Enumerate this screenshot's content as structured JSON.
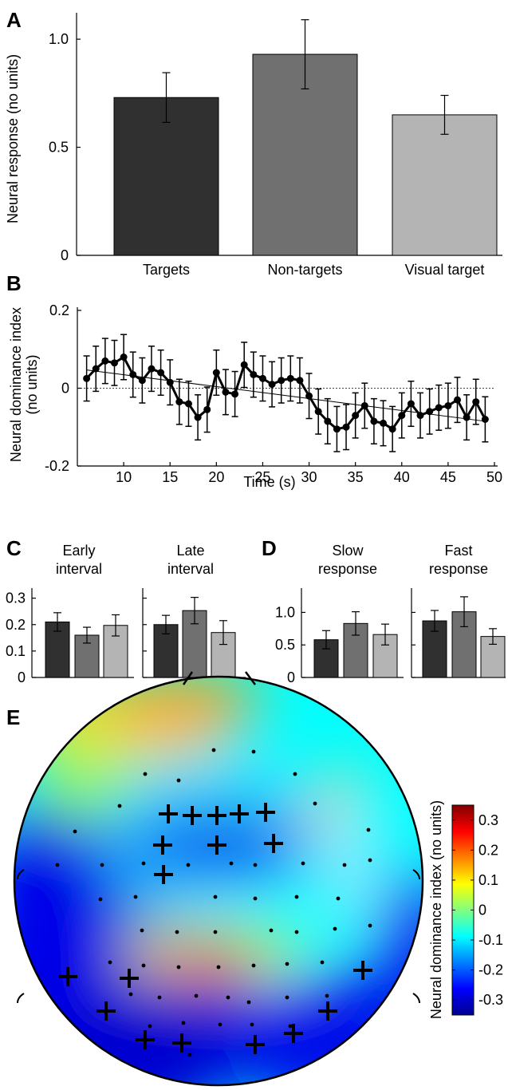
{
  "colors": {
    "bar1": "#303030",
    "bar2": "#707070",
    "bar3": "#b4b4b4",
    "axis": "#000000"
  },
  "chart_data": [
    {
      "panel": "A",
      "type": "bar",
      "categories": [
        "Targets",
        "Non-targets",
        "Visual target"
      ],
      "values": [
        0.73,
        0.93,
        0.65
      ],
      "errors": [
        0.115,
        0.16,
        0.09
      ],
      "ylabel": "Neural response (no units)",
      "ylim": [
        0,
        1.1
      ],
      "yticks": [
        0,
        0.5,
        1.0
      ],
      "ytick_labels": [
        "0",
        "0.5",
        "1.0"
      ]
    },
    {
      "panel": "B",
      "type": "line",
      "xlabel": "Time (s)",
      "ylabel": "Neural dominance index (no units)",
      "ylabel_lines": [
        "Neural dominance index",
        "(no units)"
      ],
      "xlim": [
        5,
        50
      ],
      "ylim": [
        -0.2,
        0.2
      ],
      "xticks": [
        10,
        15,
        20,
        25,
        30,
        35,
        40,
        45,
        50
      ],
      "yticks": [
        -0.2,
        0,
        0.2
      ],
      "ytick_labels": [
        "-0.2",
        "0",
        "0.2"
      ],
      "x": [
        6,
        7,
        8,
        9,
        10,
        11,
        12,
        13,
        14,
        15,
        16,
        17,
        18,
        19,
        20,
        21,
        22,
        23,
        24,
        25,
        26,
        27,
        28,
        29,
        30,
        31,
        32,
        33,
        34,
        35,
        36,
        37,
        38,
        39,
        40,
        41,
        42,
        43,
        44,
        45,
        46,
        47,
        48,
        49
      ],
      "y": [
        0.025,
        0.05,
        0.07,
        0.065,
        0.08,
        0.035,
        0.02,
        0.05,
        0.04,
        0.015,
        -0.035,
        -0.04,
        -0.075,
        -0.055,
        0.04,
        -0.01,
        -0.015,
        0.06,
        0.035,
        0.025,
        0.01,
        0.02,
        0.025,
        0.02,
        -0.02,
        -0.06,
        -0.085,
        -0.105,
        -0.1,
        -0.07,
        -0.045,
        -0.085,
        -0.09,
        -0.105,
        -0.07,
        -0.04,
        -0.07,
        -0.06,
        -0.05,
        -0.045,
        -0.03,
        -0.075,
        -0.035,
        -0.08
      ],
      "error": 0.058,
      "trend": [
        [
          6,
          0.047
        ],
        [
          49,
          -0.085
        ]
      ],
      "reference_line": 0
    },
    {
      "panel": "C",
      "type": "bar",
      "subplots": [
        {
          "title": "Early interval",
          "title_lines": [
            "Early",
            "interval"
          ],
          "values": [
            0.21,
            0.16,
            0.197
          ],
          "errors": [
            0.035,
            0.03,
            0.04
          ]
        },
        {
          "title": "Late interval",
          "title_lines": [
            "Late",
            "interval"
          ],
          "values": [
            0.2,
            0.253,
            0.17
          ],
          "errors": [
            0.035,
            0.05,
            0.045
          ]
        }
      ],
      "ylim": [
        0,
        0.32
      ],
      "yticks": [
        0,
        0.1,
        0.2,
        0.3
      ],
      "ytick_labels": [
        "0",
        "0.1",
        "0.2",
        "0.3"
      ]
    },
    {
      "panel": "D",
      "type": "bar",
      "subplots": [
        {
          "title": "Slow response",
          "title_lines": [
            "Slow",
            "response"
          ],
          "values": [
            0.58,
            0.83,
            0.66
          ],
          "errors": [
            0.14,
            0.18,
            0.16
          ]
        },
        {
          "title": "Fast response",
          "title_lines": [
            "Fast",
            "response"
          ],
          "values": [
            0.87,
            1.01,
            0.63
          ],
          "errors": [
            0.16,
            0.23,
            0.12
          ]
        }
      ],
      "ylim": [
        0,
        1.3
      ],
      "yticks": [
        0,
        0.5,
        1.0
      ],
      "ytick_labels": [
        "0",
        "0.5",
        "1.0"
      ]
    },
    {
      "panel": "E",
      "type": "heatmap",
      "subtype": "scalp topography",
      "colorbar_label": "Neural dominance index (no units)",
      "colorbar_ticks": [
        "0.3",
        "0.2",
        "0.1",
        "0",
        "-0.1",
        "-0.2",
        "-0.3"
      ],
      "colorbar_range": [
        -0.35,
        0.35
      ],
      "colormap": "jet",
      "significant_marker": "+"
    }
  ],
  "panel_labels": [
    "A",
    "B",
    "C",
    "D",
    "E"
  ]
}
